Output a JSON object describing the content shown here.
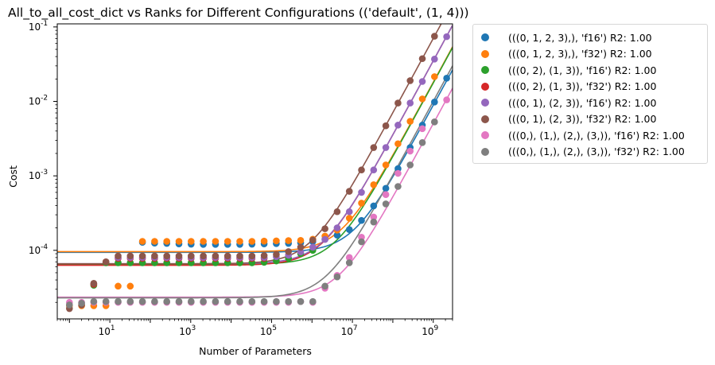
{
  "chart_data": {
    "type": "scatter",
    "title": "All_to_all_cost_dict vs Ranks for Different Configurations (('default', (1, 4)))",
    "xlabel": "Number of Parameters",
    "ylabel": "Cost",
    "xscale": "log",
    "yscale": "log",
    "xlim": [
      0.5,
      3000000000.0
    ],
    "ylim": [
      1.2e-05,
      0.11
    ],
    "xticks": [
      {
        "value": 10,
        "label": "10^1"
      },
      {
        "value": 1000,
        "label": "10^3"
      },
      {
        "value": 100000,
        "label": "10^5"
      },
      {
        "value": 10000000,
        "label": "10^7"
      },
      {
        "value": 1000000000,
        "label": "10^9"
      }
    ],
    "yticks": [
      {
        "value": 0.0001,
        "label": "10^-4"
      },
      {
        "value": 0.001,
        "label": "10^-3"
      },
      {
        "value": 0.01,
        "label": "10^-2"
      },
      {
        "value": 0.1,
        "label": "10^-1"
      }
    ],
    "grid": false,
    "legend_position": "outside-right",
    "series": [
      {
        "name": "(((0, 1, 2, 3),), 'f16') R2: 1.00",
        "color": "#1f77b4",
        "fit": {
          "a": 9.4e-05,
          "b": 8.8e-12
        },
        "x": [
          64,
          128,
          256,
          512,
          1024,
          2048,
          4096,
          8192,
          16384,
          32768,
          65536,
          131072,
          262144,
          524288,
          1048576,
          2097152,
          4194304,
          8388608,
          16777216,
          33554432,
          67108864,
          134217728,
          268435456,
          536870912,
          1073741824,
          2147483648
        ],
        "y": [
          0.000128,
          0.000125,
          0.000124,
          0.000122,
          0.000121,
          0.00012,
          0.00012,
          0.00012,
          0.00012,
          0.000121,
          0.000122,
          0.000123,
          0.000124,
          0.000126,
          0.000131,
          0.000141,
          0.00016,
          0.00019,
          0.000252,
          0.000395,
          0.00068,
          0.00125,
          0.0024,
          0.0048,
          0.0098,
          0.0205
        ]
      },
      {
        "name": "(((0, 1, 2, 3),), 'f32') R2: 1.00",
        "color": "#ff7f0e",
        "fit": {
          "a": 9.6e-05,
          "b": 1.8e-11
        },
        "x": [
          1,
          2,
          4,
          8,
          16,
          32,
          64,
          128,
          256,
          512,
          1024,
          2048,
          4096,
          8192,
          16384,
          32768,
          65536,
          131072,
          262144,
          524288,
          1048576,
          2097152,
          4194304,
          8388608,
          16777216,
          33554432,
          67108864,
          134217728,
          268435456,
          536870912,
          1073741824,
          2147483648
        ],
        "y": [
          1.8e-05,
          1.8e-05,
          1.8e-05,
          1.8e-05,
          3.3e-05,
          3.3e-05,
          0.000132,
          0.000132,
          0.000132,
          0.000132,
          0.000132,
          0.000132,
          0.000132,
          0.000132,
          0.000132,
          0.000132,
          0.000133,
          0.000134,
          0.000135,
          0.000136,
          0.000141,
          0.000155,
          0.000187,
          0.00027,
          0.00043,
          0.00076,
          0.0014,
          0.0027,
          0.0054,
          0.0108,
          0.0215,
          0.0
        ]
      },
      {
        "name": "(((0, 2), (1, 3)), 'f16') R2: 1.00",
        "color": "#2ca02c",
        "fit": {
          "a": 6.5e-05,
          "b": 1.76e-11
        },
        "x": [
          4,
          8,
          16,
          32,
          64,
          128,
          256,
          512,
          1024,
          2048,
          4096,
          8192,
          16384,
          32768,
          65536,
          131072,
          262144,
          524288,
          1048576
        ],
        "y": [
          3.4e-05,
          6.8e-05,
          6.8e-05,
          6.8e-05,
          6.8e-05,
          6.8e-05,
          6.8e-05,
          6.8e-05,
          6.8e-05,
          6.8e-05,
          6.8e-05,
          6.8e-05,
          6.8e-05,
          6.8e-05,
          6.9e-05,
          7.2e-05,
          7.8e-05,
          9e-05,
          0.0001
        ]
      },
      {
        "name": "(((0, 2), (1, 3)), 'f32') R2: 1.00",
        "color": "#d62728",
        "fit": {
          "a": 6.3e-05,
          "b": 3.5e-11
        },
        "x": [
          4,
          8,
          16,
          32,
          64,
          128,
          256,
          512,
          1024,
          2048,
          4096,
          8192,
          16384,
          32768,
          65536
        ],
        "y": [
          3.5e-05,
          7e-05,
          7.8e-05,
          7.8e-05,
          7.8e-05,
          7.8e-05,
          7.8e-05,
          7.8e-05,
          7.8e-05,
          7.8e-05,
          7.8e-05,
          7.8e-05,
          7.8e-05,
          7.8e-05,
          7.8e-05
        ]
      },
      {
        "name": "(((0, 1), (2, 3)), 'f16') R2: 1.00",
        "color": "#9467bd",
        "fit": {
          "a": 6.6e-05,
          "b": 3.5e-11
        },
        "x": [
          16,
          32,
          64,
          128,
          256,
          512,
          1024,
          2048,
          4096,
          8192,
          16384,
          32768,
          65536,
          131072,
          262144,
          524288,
          1048576,
          2097152,
          4194304,
          8388608,
          16777216,
          33554432,
          67108864,
          134217728,
          268435456,
          536870912,
          1073741824,
          2147483648
        ],
        "y": [
          8e-05,
          8e-05,
          8e-05,
          8e-05,
          8e-05,
          8e-05,
          8e-05,
          8e-05,
          8e-05,
          8e-05,
          8e-05,
          8e-05,
          8e-05,
          8.2e-05,
          8.6e-05,
          9.5e-05,
          0.00011,
          0.00014,
          0.0002,
          0.00033,
          0.0006,
          0.0012,
          0.0024,
          0.0048,
          0.0095,
          0.0185,
          0.037,
          0.074
        ]
      },
      {
        "name": "(((0, 1), (2, 3)), 'f32') R2: 1.00",
        "color": "#8c564b",
        "fit": {
          "a": 6.6e-05,
          "b": 7e-11
        },
        "x": [
          1,
          2,
          4,
          8,
          16,
          32,
          64,
          128,
          256,
          512,
          1024,
          2048,
          4096,
          8192,
          16384,
          32768,
          65536,
          131072,
          262144,
          524288,
          1048576,
          2097152,
          4194304,
          8388608,
          16777216,
          33554432,
          67108864,
          134217728,
          268435456,
          536870912,
          1073741824
        ],
        "y": [
          1.65e-05,
          1.85e-05,
          3.6e-05,
          7e-05,
          8.4e-05,
          8.4e-05,
          8.4e-05,
          8.4e-05,
          8.4e-05,
          8.4e-05,
          8.4e-05,
          8.4e-05,
          8.4e-05,
          8.4e-05,
          8.4e-05,
          8.4e-05,
          8.5e-05,
          8.8e-05,
          9.6e-05,
          0.00011,
          0.000137,
          0.000195,
          0.00033,
          0.00062,
          0.0012,
          0.0024,
          0.0047,
          0.0095,
          0.019,
          0.0375,
          0.075
        ]
      },
      {
        "name": "(((0,), (1,), (2,), (3,)), 'f16') R2: 1.00",
        "color": "#e377c2",
        "fit": {
          "a": 2.35e-05,
          "b": 5e-12
        },
        "x": [
          1,
          2,
          4,
          8,
          16,
          32,
          64,
          128,
          256,
          512,
          1024,
          2048,
          4096,
          8192,
          16384,
          32768,
          65536,
          131072,
          262144,
          524288,
          1048576,
          2097152,
          4194304,
          8388608,
          16777216,
          33554432,
          67108864,
          134217728,
          268435456,
          536870912,
          1073741824,
          2147483648
        ],
        "y": [
          2e-05,
          2e-05,
          2e-05,
          2e-05,
          2e-05,
          2e-05,
          2e-05,
          2e-05,
          2e-05,
          2e-05,
          2e-05,
          2e-05,
          2e-05,
          2e-05,
          2e-05,
          2e-05,
          2e-05,
          2e-05,
          2e-05,
          2.05e-05,
          2e-05,
          3.1e-05,
          4.6e-05,
          8e-05,
          0.00015,
          0.00028,
          0.00056,
          0.00108,
          0.00215,
          0.0043,
          0.0053,
          0.0105
        ]
      },
      {
        "name": "(((0,), (1,), (2,), (3,)), 'f32') R2: 1.00",
        "color": "#7f7f7f",
        "fit": {
          "a": 2.3e-05,
          "b": 1e-11
        },
        "x": [
          1,
          2,
          4,
          8,
          16,
          32,
          64,
          128,
          256,
          512,
          1024,
          2048,
          4096,
          8192,
          16384,
          32768,
          65536,
          131072,
          262144,
          524288,
          1048576,
          2097152,
          4194304,
          8388608,
          16777216,
          33554432,
          67108864,
          134217728,
          268435456,
          536870912,
          1073741824
        ],
        "y": [
          1.85e-05,
          1.95e-05,
          2.05e-05,
          2.05e-05,
          2.05e-05,
          2.05e-05,
          2.05e-05,
          2.05e-05,
          2.05e-05,
          2.05e-05,
          2.05e-05,
          2.05e-05,
          2.05e-05,
          2.05e-05,
          2.05e-05,
          2.05e-05,
          2.05e-05,
          2.05e-05,
          2.05e-05,
          2.05e-05,
          2.05e-05,
          3.3e-05,
          4.4e-05,
          6.8e-05,
          0.00013,
          0.00024,
          0.00042,
          0.00072,
          0.0014,
          0.0028,
          0.0053
        ]
      }
    ]
  }
}
